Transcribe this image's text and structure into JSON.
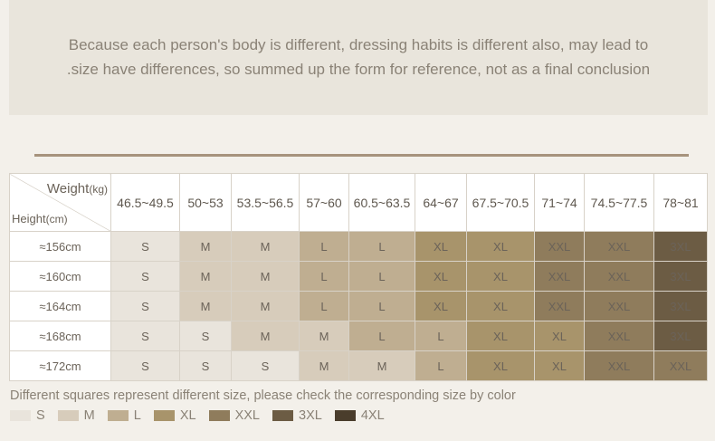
{
  "notice": {
    "line1": "Because each person's body is different, dressing habits is different also, may lead to",
    "line2": ".size have differences, so summed up the form for reference, not as a final conclusion"
  },
  "table": {
    "weight_label": "Weight",
    "weight_unit": "(kg)",
    "height_label": "Height",
    "height_unit": "(cm)",
    "weights": [
      "46.5~49.5",
      "50~53",
      "53.5~56.5",
      "57~60",
      "60.5~63.5",
      "64~67",
      "67.5~70.5",
      "71~74",
      "74.5~77.5",
      "78~81"
    ],
    "rows": [
      {
        "height": "≈156cm",
        "sizes": [
          "S",
          "M",
          "M",
          "L",
          "L",
          "XL",
          "XL",
          "XXL",
          "XXL",
          "3XL"
        ]
      },
      {
        "height": "≈160cm",
        "sizes": [
          "S",
          "M",
          "M",
          "L",
          "L",
          "XL",
          "XL",
          "XXL",
          "XXL",
          "3XL"
        ]
      },
      {
        "height": "≈164cm",
        "sizes": [
          "S",
          "M",
          "M",
          "L",
          "L",
          "XL",
          "XL",
          "XXL",
          "XXL",
          "3XL"
        ]
      },
      {
        "height": "≈168cm",
        "sizes": [
          "S",
          "S",
          "M",
          "M",
          "L",
          "L",
          "XL",
          "XL",
          "XXL",
          "3XL"
        ]
      },
      {
        "height": "≈172cm",
        "sizes": [
          "S",
          "S",
          "S",
          "M",
          "M",
          "L",
          "XL",
          "XL",
          "XXL",
          "XXL"
        ]
      }
    ]
  },
  "legend": {
    "title": "Different squares represent different size, please check the corresponding size by color",
    "items": [
      {
        "label": "S",
        "color": "#e9e4dc"
      },
      {
        "label": "M",
        "color": "#d7ccbb"
      },
      {
        "label": "L",
        "color": "#bfae91"
      },
      {
        "label": "XL",
        "color": "#a8946b"
      },
      {
        "label": "XXL",
        "color": "#8f7c5c"
      },
      {
        "label": "3XL",
        "color": "#6c5c44"
      },
      {
        "label": "4XL",
        "color": "#4a3d2c"
      }
    ]
  }
}
